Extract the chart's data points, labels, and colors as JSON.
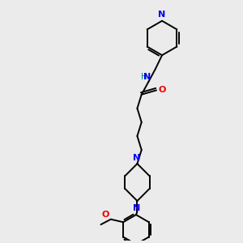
{
  "bg_color": "#ebebeb",
  "bond_color": "#000000",
  "N_color": "#0000ee",
  "O_color": "#ee0000",
  "H_color": "#008080",
  "lw": 1.4,
  "figsize": [
    3.0,
    3.0
  ],
  "dpi": 100,
  "xlim": [
    0,
    10
  ],
  "ylim": [
    0,
    10
  ]
}
